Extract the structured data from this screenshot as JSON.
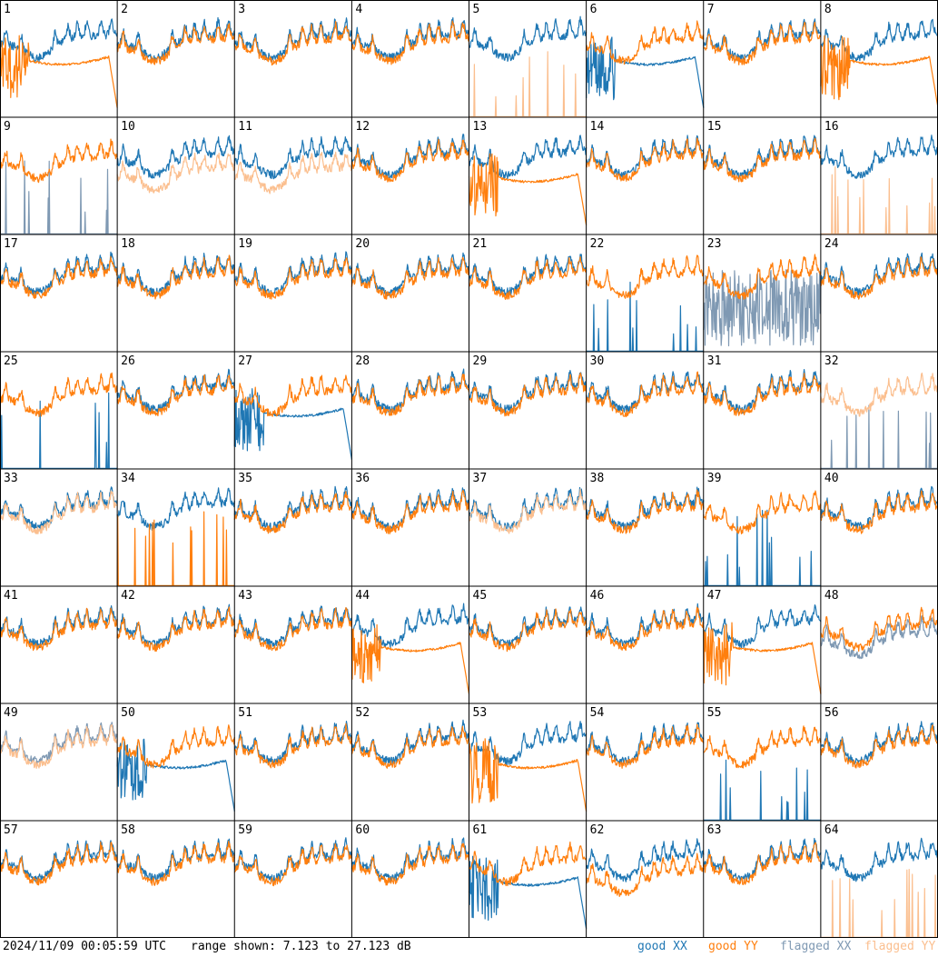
{
  "footer": {
    "timestamp": "2024/11/09 00:05:59 UTC",
    "range_text": "range shown: 7.123 to 27.123 dB",
    "legend": [
      {
        "label": "good XX",
        "color": "#1f77b4"
      },
      {
        "label": "good YY",
        "color": "#ff7f0e"
      },
      {
        "label": "flagged XX",
        "color": "#7f99b3"
      },
      {
        "label": "flagged YY",
        "color": "#fbbf8f"
      }
    ]
  },
  "chart_data": {
    "type": "line",
    "layout": "small-multiples 8x8",
    "ylim": [
      7.123,
      27.123
    ],
    "yunit": "dB",
    "series_styles": {
      "good_xx": "#1f77b4",
      "good_yy": "#ff7f0e",
      "flagged_xx": "#7f99b3",
      "flagged_yy": "#fbbf8f"
    },
    "panels": [
      {
        "id": "1",
        "xx": "good",
        "yy": "good",
        "shape_xx": "normal",
        "shape_yy": "dropout"
      },
      {
        "id": "2",
        "xx": "good",
        "yy": "good",
        "shape_xx": "normal",
        "shape_yy": "normal"
      },
      {
        "id": "3",
        "xx": "good",
        "yy": "good",
        "shape_xx": "normal",
        "shape_yy": "normal"
      },
      {
        "id": "4",
        "xx": "good",
        "yy": "good",
        "shape_xx": "normal",
        "shape_yy": "normal"
      },
      {
        "id": "5",
        "xx": "good",
        "yy": "flagged",
        "shape_xx": "normal",
        "shape_yy": "spikes"
      },
      {
        "id": "6",
        "xx": "good",
        "yy": "good",
        "shape_xx": "dropout",
        "shape_yy": "normal"
      },
      {
        "id": "7",
        "xx": "good",
        "yy": "good",
        "shape_xx": "normal",
        "shape_yy": "normal"
      },
      {
        "id": "8",
        "xx": "good",
        "yy": "good",
        "shape_xx": "normal",
        "shape_yy": "dropout"
      },
      {
        "id": "9",
        "xx": "flagged",
        "yy": "good",
        "shape_xx": "spikes",
        "shape_yy": "normal"
      },
      {
        "id": "10",
        "xx": "good",
        "yy": "flagged",
        "shape_xx": "normal",
        "shape_yy": "low"
      },
      {
        "id": "11",
        "xx": "good",
        "yy": "flagged",
        "shape_xx": "normal",
        "shape_yy": "low"
      },
      {
        "id": "12",
        "xx": "good",
        "yy": "good",
        "shape_xx": "normal",
        "shape_yy": "normal"
      },
      {
        "id": "13",
        "xx": "good",
        "yy": "good",
        "shape_xx": "normal",
        "shape_yy": "dropout"
      },
      {
        "id": "14",
        "xx": "good",
        "yy": "good",
        "shape_xx": "normal",
        "shape_yy": "normal"
      },
      {
        "id": "15",
        "xx": "good",
        "yy": "good",
        "shape_xx": "normal",
        "shape_yy": "normal"
      },
      {
        "id": "16",
        "xx": "good",
        "yy": "flagged",
        "shape_xx": "normal",
        "shape_yy": "spikes"
      },
      {
        "id": "17",
        "xx": "good",
        "yy": "good",
        "shape_xx": "normal",
        "shape_yy": "normal"
      },
      {
        "id": "18",
        "xx": "good",
        "yy": "good",
        "shape_xx": "normal",
        "shape_yy": "normal"
      },
      {
        "id": "19",
        "xx": "good",
        "yy": "good",
        "shape_xx": "normal",
        "shape_yy": "normal"
      },
      {
        "id": "20",
        "xx": "good",
        "yy": "good",
        "shape_xx": "normal",
        "shape_yy": "normal"
      },
      {
        "id": "21",
        "xx": "good",
        "yy": "good",
        "shape_xx": "normal",
        "shape_yy": "normal"
      },
      {
        "id": "22",
        "xx": "good",
        "yy": "good",
        "shape_xx": "spikes",
        "shape_yy": "normal"
      },
      {
        "id": "23",
        "xx": "flagged",
        "yy": "good",
        "shape_xx": "noisy",
        "shape_yy": "normal"
      },
      {
        "id": "24",
        "xx": "good",
        "yy": "good",
        "shape_xx": "normal",
        "shape_yy": "normal"
      },
      {
        "id": "25",
        "xx": "good",
        "yy": "good",
        "shape_xx": "spikes",
        "shape_yy": "normal"
      },
      {
        "id": "26",
        "xx": "good",
        "yy": "good",
        "shape_xx": "normal",
        "shape_yy": "normal"
      },
      {
        "id": "27",
        "xx": "good",
        "yy": "good",
        "shape_xx": "dropout",
        "shape_yy": "normal"
      },
      {
        "id": "28",
        "xx": "good",
        "yy": "good",
        "shape_xx": "normal",
        "shape_yy": "normal"
      },
      {
        "id": "29",
        "xx": "good",
        "yy": "good",
        "shape_xx": "normal",
        "shape_yy": "normal"
      },
      {
        "id": "30",
        "xx": "good",
        "yy": "good",
        "shape_xx": "normal",
        "shape_yy": "normal"
      },
      {
        "id": "31",
        "xx": "good",
        "yy": "good",
        "shape_xx": "normal",
        "shape_yy": "normal"
      },
      {
        "id": "32",
        "xx": "flagged",
        "yy": "flagged",
        "shape_xx": "spikes",
        "shape_yy": "normal"
      },
      {
        "id": "33",
        "xx": "good",
        "yy": "flagged",
        "shape_xx": "normal",
        "shape_yy": "normal"
      },
      {
        "id": "34",
        "xx": "good",
        "yy": "good",
        "shape_xx": "normal",
        "shape_yy": "spikes"
      },
      {
        "id": "35",
        "xx": "good",
        "yy": "good",
        "shape_xx": "normal",
        "shape_yy": "normal"
      },
      {
        "id": "36",
        "xx": "good",
        "yy": "good",
        "shape_xx": "normal",
        "shape_yy": "normal"
      },
      {
        "id": "37",
        "xx": "good",
        "yy": "flagged",
        "shape_xx": "normal",
        "shape_yy": "normal"
      },
      {
        "id": "38",
        "xx": "good",
        "yy": "good",
        "shape_xx": "normal",
        "shape_yy": "normal"
      },
      {
        "id": "39",
        "xx": "good",
        "yy": "good",
        "shape_xx": "spikes",
        "shape_yy": "normal"
      },
      {
        "id": "40",
        "xx": "good",
        "yy": "good",
        "shape_xx": "normal",
        "shape_yy": "normal"
      },
      {
        "id": "41",
        "xx": "good",
        "yy": "good",
        "shape_xx": "normal",
        "shape_yy": "normal"
      },
      {
        "id": "42",
        "xx": "good",
        "yy": "good",
        "shape_xx": "normal",
        "shape_yy": "normal"
      },
      {
        "id": "43",
        "xx": "good",
        "yy": "good",
        "shape_xx": "normal",
        "shape_yy": "normal"
      },
      {
        "id": "44",
        "xx": "good",
        "yy": "good",
        "shape_xx": "normal",
        "shape_yy": "dropout"
      },
      {
        "id": "45",
        "xx": "good",
        "yy": "good",
        "shape_xx": "normal",
        "shape_yy": "normal"
      },
      {
        "id": "46",
        "xx": "good",
        "yy": "good",
        "shape_xx": "normal",
        "shape_yy": "normal"
      },
      {
        "id": "47",
        "xx": "good",
        "yy": "good",
        "shape_xx": "normal",
        "shape_yy": "dropout"
      },
      {
        "id": "48",
        "xx": "flagged",
        "yy": "good",
        "shape_xx": "low",
        "shape_yy": "normal"
      },
      {
        "id": "49",
        "xx": "flagged",
        "yy": "flagged",
        "shape_xx": "normal",
        "shape_yy": "normal"
      },
      {
        "id": "50",
        "xx": "good",
        "yy": "good",
        "shape_xx": "dropout",
        "shape_yy": "normal"
      },
      {
        "id": "51",
        "xx": "good",
        "yy": "good",
        "shape_xx": "normal",
        "shape_yy": "normal"
      },
      {
        "id": "52",
        "xx": "good",
        "yy": "good",
        "shape_xx": "normal",
        "shape_yy": "normal"
      },
      {
        "id": "53",
        "xx": "good",
        "yy": "good",
        "shape_xx": "normal",
        "shape_yy": "dropout"
      },
      {
        "id": "54",
        "xx": "good",
        "yy": "good",
        "shape_xx": "normal",
        "shape_yy": "normal"
      },
      {
        "id": "55",
        "xx": "good",
        "yy": "good",
        "shape_xx": "spikes",
        "shape_yy": "normal"
      },
      {
        "id": "56",
        "xx": "good",
        "yy": "good",
        "shape_xx": "normal",
        "shape_yy": "normal"
      },
      {
        "id": "57",
        "xx": "good",
        "yy": "good",
        "shape_xx": "normal",
        "shape_yy": "normal"
      },
      {
        "id": "58",
        "xx": "good",
        "yy": "good",
        "shape_xx": "normal",
        "shape_yy": "normal"
      },
      {
        "id": "59",
        "xx": "good",
        "yy": "good",
        "shape_xx": "normal",
        "shape_yy": "normal"
      },
      {
        "id": "60",
        "xx": "good",
        "yy": "good",
        "shape_xx": "normal",
        "shape_yy": "normal"
      },
      {
        "id": "61",
        "xx": "good",
        "yy": "good",
        "shape_xx": "dropout",
        "shape_yy": "normal"
      },
      {
        "id": "62",
        "xx": "good",
        "yy": "good",
        "shape_xx": "normal",
        "shape_yy": "low"
      },
      {
        "id": "63",
        "xx": "good",
        "yy": "good",
        "shape_xx": "normal",
        "shape_yy": "normal"
      },
      {
        "id": "64",
        "xx": "good",
        "yy": "flagged",
        "shape_xx": "normal",
        "shape_yy": "spikes"
      }
    ]
  }
}
